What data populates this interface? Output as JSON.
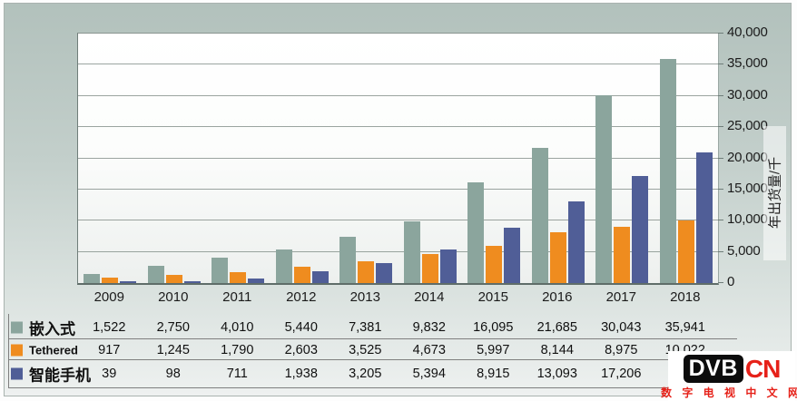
{
  "chart_data": {
    "type": "bar",
    "categories": [
      "2009",
      "2010",
      "2011",
      "2012",
      "2013",
      "2014",
      "2015",
      "2016",
      "2017",
      "2018"
    ],
    "series": [
      {
        "name": "嵌入式",
        "color": "#8ba59d",
        "values": [
          1522,
          2750,
          4010,
          5440,
          7381,
          9832,
          16095,
          21685,
          30043,
          35941
        ]
      },
      {
        "name": "Tethered",
        "color": "#ef8c1f",
        "values": [
          917,
          1245,
          1790,
          2603,
          3525,
          4673,
          5997,
          8144,
          8975,
          10022
        ]
      },
      {
        "name": "智能手机",
        "color": "#505e97",
        "values": [
          39,
          98,
          711,
          1938,
          3205,
          5394,
          8915,
          13093,
          17206,
          21000
        ]
      }
    ],
    "title": "",
    "xlabel": "",
    "ylabel": "年出货量/千",
    "ylim": [
      0,
      40000
    ],
    "ytick_step": 5000,
    "ytick_labels": [
      "0",
      "5,000",
      "10,000",
      "15,000",
      "20,000",
      "25,000",
      "30,000",
      "35,000",
      "40,000"
    ],
    "grid": true,
    "legend_position": "table-left-below"
  },
  "table": {
    "rows": [
      {
        "label": "嵌入式",
        "swatch": "#8ba59d",
        "values": [
          "1,522",
          "2,750",
          "4,010",
          "5,440",
          "7,381",
          "9,832",
          "16,095",
          "21,685",
          "30,043",
          "35,941"
        ]
      },
      {
        "label": "Tethered",
        "swatch": "#ef8c1f",
        "values": [
          "917",
          "1,245",
          "1,790",
          "2,603",
          "3,525",
          "4,673",
          "5,997",
          "8,144",
          "8,975",
          "10,022"
        ]
      },
      {
        "label": "智能手机",
        "swatch": "#505e97",
        "values": [
          "39",
          "98",
          "711",
          "1,938",
          "3,205",
          "5,394",
          "8,915",
          "13,093",
          "17,206",
          ""
        ]
      }
    ]
  },
  "watermark": {
    "logo_dvb": "DVB",
    "logo_cn": "CN",
    "subtitle": "数 字 电 视 中 文 网"
  },
  "colors": {
    "embedded_bar": "#8ba59d",
    "tethered_bar": "#ef8c1f",
    "smartphone_bar": "#505e97",
    "logo_red": "#e62119",
    "background_sage": "#c3cfcb",
    "gridline": "#8a948f"
  }
}
